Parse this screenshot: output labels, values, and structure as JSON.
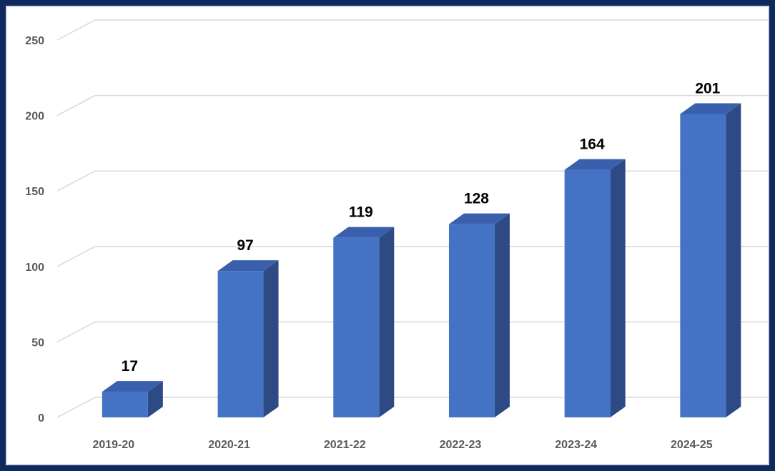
{
  "chart_data": {
    "type": "bar",
    "categories": [
      "2019-20",
      "2020-21",
      "2021-22",
      "2022-23",
      "2023-24",
      "2024-25"
    ],
    "values": [
      17,
      97,
      119,
      128,
      164,
      201
    ],
    "ylim": [
      0,
      250
    ],
    "yticks": [
      0,
      50,
      100,
      150,
      200,
      250
    ],
    "yticklabels": [
      "0",
      "50",
      "100",
      "150",
      "200",
      "250"
    ],
    "data_labels": [
      "17",
      "97",
      "119",
      "128",
      "164",
      "201"
    ],
    "grid": true,
    "three_d": true,
    "legend": "none",
    "colors": {
      "bar_front": "#4472c4",
      "bar_side": "#2e4a85",
      "bar_top": "#3a60ad",
      "gridline": "#d9d9d9",
      "frame": "#0f2a5c"
    }
  }
}
